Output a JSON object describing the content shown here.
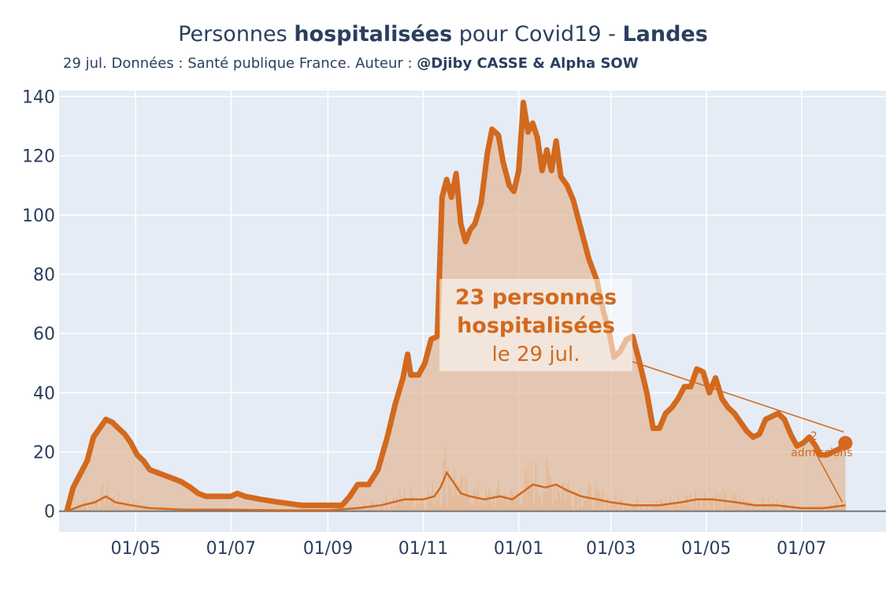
{
  "header": {
    "title_part1": "Personnes ",
    "title_bold1": "hospitalisées",
    "title_part2": " pour Covid19 - ",
    "title_bold2": "Landes",
    "subtitle_text": "29 jul. Données : Santé publique France. Auteur : ",
    "subtitle_author": "@Djiby CASSE & Alpha SOW"
  },
  "annotation": {
    "line1": "23 personnes",
    "line2": "hospitalisées",
    "line3": "le 29 jul.",
    "mini_value": "2",
    "mini_label": "admissions"
  },
  "colors": {
    "plot_bg": "#e5ecf6",
    "line": "#d2691e",
    "fill": "#e2b896",
    "grid": "#ffffff"
  },
  "chart_data": {
    "type": "area",
    "title": "Personnes hospitalisées pour Covid19 - Landes",
    "xlabel": "",
    "ylabel": "",
    "x_start": "2020-03-18",
    "x_end": "2021-07-29",
    "xlim": [
      "2020-03-13",
      "2021-08-24"
    ],
    "ylim": [
      -7,
      142
    ],
    "yticks": [
      0,
      20,
      40,
      60,
      80,
      100,
      120,
      140
    ],
    "xticks": [
      {
        "date": "2020-05-01",
        "label": "01/05"
      },
      {
        "date": "2020-07-01",
        "label": "01/07"
      },
      {
        "date": "2020-09-01",
        "label": "01/09"
      },
      {
        "date": "2020-11-01",
        "label": "01/11"
      },
      {
        "date": "2021-01-01",
        "label": "01/01"
      },
      {
        "date": "2021-03-01",
        "label": "01/03"
      },
      {
        "date": "2021-05-01",
        "label": "01/05"
      },
      {
        "date": "2021-07-01",
        "label": "01/07"
      }
    ],
    "grid": true,
    "series": [
      {
        "kind": "hospitalisations",
        "points": [
          [
            "2020-03-18",
            0
          ],
          [
            "2020-03-22",
            8
          ],
          [
            "2020-03-27",
            13
          ],
          [
            "2020-03-31",
            17
          ],
          [
            "2020-04-04",
            25
          ],
          [
            "2020-04-08",
            28
          ],
          [
            "2020-04-12",
            31
          ],
          [
            "2020-04-16",
            30
          ],
          [
            "2020-04-20",
            28
          ],
          [
            "2020-04-24",
            26
          ],
          [
            "2020-04-28",
            23
          ],
          [
            "2020-05-02",
            19
          ],
          [
            "2020-05-06",
            17
          ],
          [
            "2020-05-10",
            14
          ],
          [
            "2020-05-15",
            13
          ],
          [
            "2020-05-20",
            12
          ],
          [
            "2020-05-25",
            11
          ],
          [
            "2020-05-30",
            10
          ],
          [
            "2020-06-05",
            8
          ],
          [
            "2020-06-10",
            6
          ],
          [
            "2020-06-15",
            5
          ],
          [
            "2020-06-25",
            5
          ],
          [
            "2020-07-01",
            5
          ],
          [
            "2020-07-05",
            6
          ],
          [
            "2020-07-10",
            5
          ],
          [
            "2020-07-20",
            4
          ],
          [
            "2020-08-01",
            3
          ],
          [
            "2020-08-15",
            2
          ],
          [
            "2020-09-01",
            2
          ],
          [
            "2020-09-10",
            2
          ],
          [
            "2020-09-15",
            5
          ],
          [
            "2020-09-20",
            9
          ],
          [
            "2020-09-27",
            9
          ],
          [
            "2020-10-03",
            14
          ],
          [
            "2020-10-09",
            25
          ],
          [
            "2020-10-14",
            36
          ],
          [
            "2020-10-19",
            45
          ],
          [
            "2020-10-22",
            53
          ],
          [
            "2020-10-24",
            46
          ],
          [
            "2020-10-29",
            46
          ],
          [
            "2020-11-02",
            50
          ],
          [
            "2020-11-06",
            58
          ],
          [
            "2020-11-10",
            59
          ],
          [
            "2020-11-13",
            106
          ],
          [
            "2020-11-16",
            112
          ],
          [
            "2020-11-19",
            106
          ],
          [
            "2020-11-22",
            114
          ],
          [
            "2020-11-25",
            97
          ],
          [
            "2020-11-28",
            91
          ],
          [
            "2020-12-01",
            95
          ],
          [
            "2020-12-04",
            97
          ],
          [
            "2020-12-08",
            104
          ],
          [
            "2020-12-12",
            121
          ],
          [
            "2020-12-15",
            129
          ],
          [
            "2020-12-19",
            127
          ],
          [
            "2020-12-22",
            118
          ],
          [
            "2020-12-26",
            110
          ],
          [
            "2020-12-29",
            108
          ],
          [
            "2021-01-01",
            115
          ],
          [
            "2021-01-04",
            138
          ],
          [
            "2021-01-07",
            128
          ],
          [
            "2021-01-10",
            131
          ],
          [
            "2021-01-13",
            126
          ],
          [
            "2021-01-16",
            115
          ],
          [
            "2021-01-19",
            122
          ],
          [
            "2021-01-22",
            115
          ],
          [
            "2021-01-25",
            125
          ],
          [
            "2021-01-28",
            113
          ],
          [
            "2021-02-01",
            110
          ],
          [
            "2021-02-05",
            105
          ],
          [
            "2021-02-10",
            95
          ],
          [
            "2021-02-15",
            85
          ],
          [
            "2021-02-20",
            78
          ],
          [
            "2021-02-24",
            68
          ],
          [
            "2021-02-28",
            60
          ],
          [
            "2021-03-03",
            52
          ],
          [
            "2021-03-07",
            54
          ],
          [
            "2021-03-11",
            58
          ],
          [
            "2021-03-15",
            59
          ],
          [
            "2021-03-19",
            51
          ],
          [
            "2021-03-24",
            40
          ],
          [
            "2021-03-28",
            28
          ],
          [
            "2021-04-01",
            28
          ],
          [
            "2021-04-05",
            33
          ],
          [
            "2021-04-09",
            35
          ],
          [
            "2021-04-13",
            38
          ],
          [
            "2021-04-17",
            42
          ],
          [
            "2021-04-21",
            42
          ],
          [
            "2021-04-25",
            48
          ],
          [
            "2021-04-29",
            47
          ],
          [
            "2021-05-03",
            40
          ],
          [
            "2021-05-07",
            45
          ],
          [
            "2021-05-11",
            38
          ],
          [
            "2021-05-15",
            35
          ],
          [
            "2021-05-19",
            33
          ],
          [
            "2021-05-23",
            30
          ],
          [
            "2021-05-27",
            27
          ],
          [
            "2021-05-31",
            25
          ],
          [
            "2021-06-04",
            26
          ],
          [
            "2021-06-08",
            31
          ],
          [
            "2021-06-12",
            32
          ],
          [
            "2021-06-16",
            33
          ],
          [
            "2021-06-20",
            31
          ],
          [
            "2021-06-24",
            26
          ],
          [
            "2021-06-28",
            22
          ],
          [
            "2021-07-02",
            23
          ],
          [
            "2021-07-06",
            25
          ],
          [
            "2021-07-10",
            22
          ],
          [
            "2021-07-13",
            19
          ],
          [
            "2021-07-17",
            19
          ],
          [
            "2021-07-21",
            20
          ],
          [
            "2021-07-25",
            21
          ],
          [
            "2021-07-29",
            23
          ]
        ]
      },
      {
        "kind": "admissions",
        "points": [
          [
            "2020-03-18",
            0
          ],
          [
            "2020-03-28",
            2
          ],
          [
            "2020-04-05",
            3
          ],
          [
            "2020-04-12",
            5
          ],
          [
            "2020-04-18",
            3
          ],
          [
            "2020-04-28",
            2
          ],
          [
            "2020-05-10",
            1
          ],
          [
            "2020-06-01",
            0.5
          ],
          [
            "2020-07-01",
            0.5
          ],
          [
            "2020-08-01",
            0.3
          ],
          [
            "2020-09-01",
            0.3
          ],
          [
            "2020-09-20",
            1
          ],
          [
            "2020-10-05",
            2
          ],
          [
            "2020-10-20",
            4
          ],
          [
            "2020-11-01",
            4
          ],
          [
            "2020-11-08",
            5
          ],
          [
            "2020-11-12",
            8
          ],
          [
            "2020-11-16",
            13
          ],
          [
            "2020-11-20",
            10
          ],
          [
            "2020-11-25",
            6
          ],
          [
            "2020-12-01",
            5
          ],
          [
            "2020-12-10",
            4
          ],
          [
            "2020-12-20",
            5
          ],
          [
            "2020-12-28",
            4
          ],
          [
            "2021-01-05",
            7
          ],
          [
            "2021-01-10",
            9
          ],
          [
            "2021-01-18",
            8
          ],
          [
            "2021-01-25",
            9
          ],
          [
            "2021-02-01",
            7
          ],
          [
            "2021-02-10",
            5
          ],
          [
            "2021-02-20",
            4
          ],
          [
            "2021-03-01",
            3
          ],
          [
            "2021-03-15",
            2
          ],
          [
            "2021-04-01",
            2
          ],
          [
            "2021-04-15",
            3
          ],
          [
            "2021-04-25",
            4
          ],
          [
            "2021-05-05",
            4
          ],
          [
            "2021-05-20",
            3
          ],
          [
            "2021-06-01",
            2
          ],
          [
            "2021-06-15",
            2
          ],
          [
            "2021-07-01",
            1
          ],
          [
            "2021-07-15",
            1
          ],
          [
            "2021-07-29",
            2
          ]
        ]
      }
    ],
    "annotation_value": 23,
    "annotation_admissions": 2
  }
}
